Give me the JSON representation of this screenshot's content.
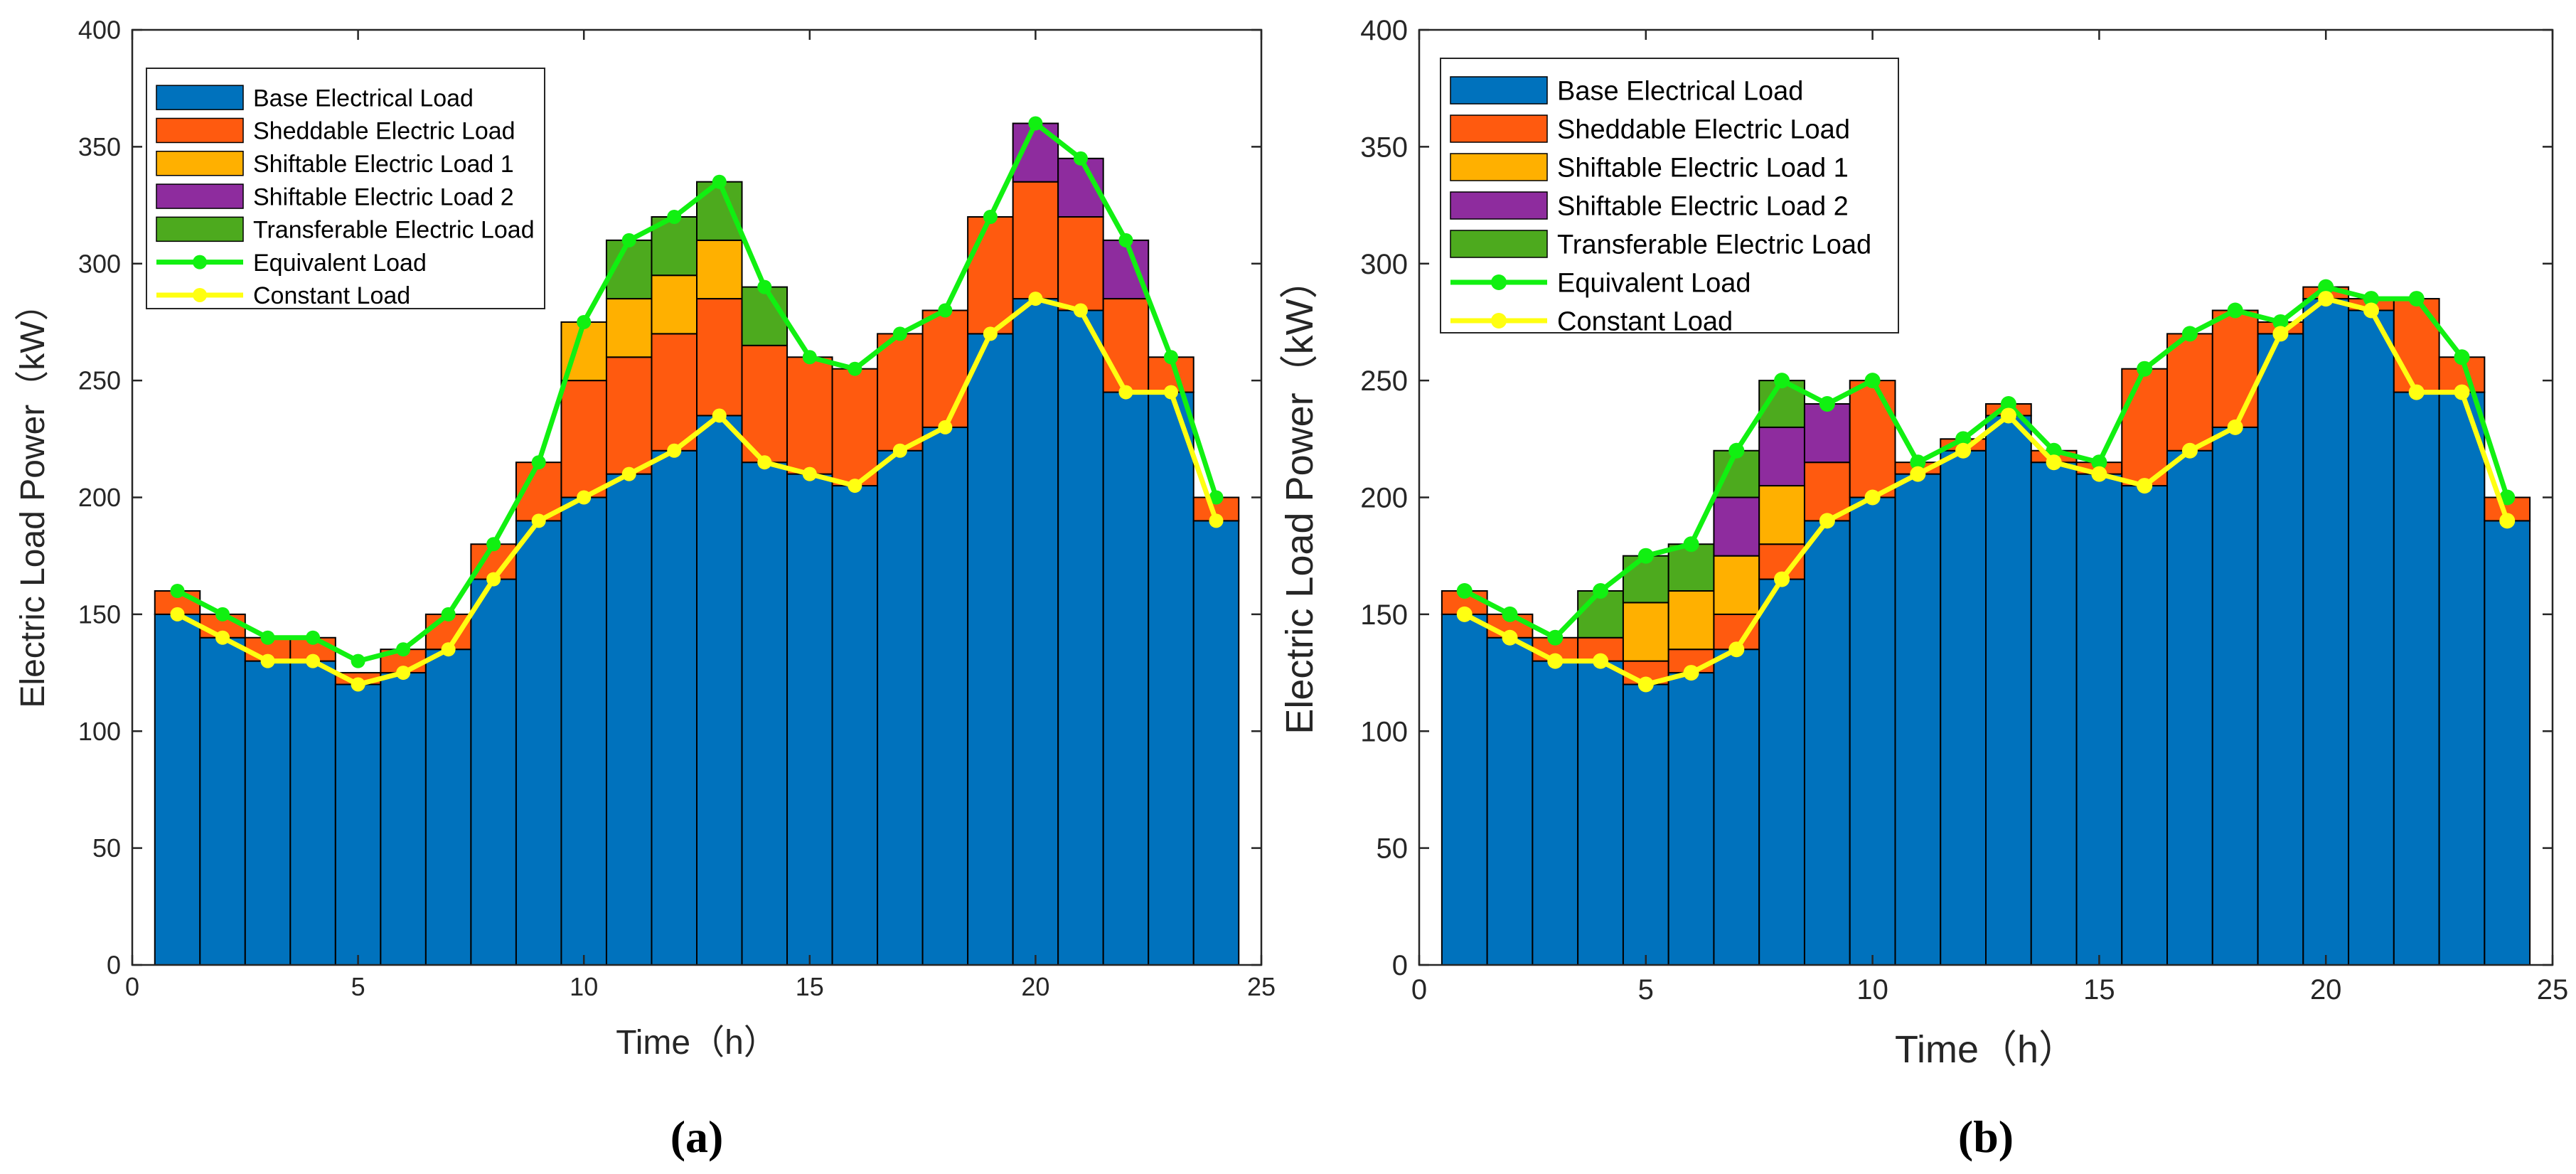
{
  "figure": {
    "panels": [
      "(a)",
      "(b)"
    ]
  },
  "colors": {
    "base": "#0072BD",
    "sheddable": "#FF5A0F",
    "shiftable1": "#FFB000",
    "shiftable2": "#8E2C9E",
    "transferable": "#4DAA1E",
    "equivalent": "#11F011",
    "constant": "#FFFF11",
    "axis": "#262626"
  },
  "chart_data": [
    {
      "type": "bar",
      "panel_label": "(a)",
      "stacked": true,
      "xlabel": "Time（h）",
      "ylabel": "Electric Load Power（kW）",
      "xlim": [
        0,
        25
      ],
      "ylim": [
        0,
        400
      ],
      "xticks": [
        0,
        5,
        10,
        15,
        20,
        25
      ],
      "yticks": [
        0,
        50,
        100,
        150,
        200,
        250,
        300,
        350,
        400
      ],
      "legend_position": "top-left",
      "x": [
        1,
        2,
        3,
        4,
        5,
        6,
        7,
        8,
        9,
        10,
        11,
        12,
        13,
        14,
        15,
        16,
        17,
        18,
        19,
        20,
        21,
        22,
        23,
        24
      ],
      "series": [
        {
          "name": "Base Electrical Load",
          "color_key": "base",
          "values": [
            150,
            140,
            130,
            130,
            120,
            125,
            135,
            165,
            190,
            200,
            210,
            220,
            235,
            215,
            210,
            205,
            220,
            230,
            270,
            285,
            280,
            245,
            245,
            190
          ]
        },
        {
          "name": "Sheddable Electric Load",
          "color_key": "sheddable",
          "values": [
            10,
            10,
            10,
            10,
            5,
            10,
            15,
            15,
            25,
            50,
            50,
            50,
            50,
            50,
            50,
            50,
            50,
            50,
            50,
            50,
            40,
            40,
            15,
            10
          ]
        },
        {
          "name": "Shiftable Electric Load 1",
          "color_key": "shiftable1",
          "values": [
            0,
            0,
            0,
            0,
            0,
            0,
            0,
            0,
            0,
            25,
            25,
            25,
            25,
            0,
            0,
            0,
            0,
            0,
            0,
            0,
            0,
            0,
            0,
            0
          ]
        },
        {
          "name": "Shiftable Electric Load 2",
          "color_key": "shiftable2",
          "values": [
            0,
            0,
            0,
            0,
            0,
            0,
            0,
            0,
            0,
            0,
            0,
            0,
            0,
            0,
            0,
            0,
            0,
            0,
            0,
            25,
            25,
            25,
            0,
            0
          ]
        },
        {
          "name": "Transferable Electric Load",
          "color_key": "transferable",
          "values": [
            0,
            0,
            0,
            0,
            0,
            0,
            0,
            0,
            0,
            0,
            25,
            25,
            25,
            25,
            0,
            0,
            0,
            0,
            0,
            0,
            0,
            0,
            0,
            0
          ]
        }
      ],
      "lines": [
        {
          "name": "Equivalent Load",
          "color_key": "equivalent",
          "values": [
            160,
            150,
            140,
            140,
            130,
            135,
            150,
            180,
            215,
            275,
            310,
            320,
            335,
            290,
            260,
            255,
            270,
            280,
            320,
            360,
            345,
            310,
            260,
            200
          ]
        },
        {
          "name": "Constant Load",
          "color_key": "constant",
          "values": [
            150,
            140,
            130,
            130,
            120,
            125,
            135,
            165,
            190,
            200,
            210,
            220,
            235,
            215,
            210,
            205,
            220,
            230,
            270,
            285,
            280,
            245,
            245,
            190
          ]
        }
      ]
    },
    {
      "type": "bar",
      "panel_label": "(b)",
      "stacked": true,
      "xlabel": "Time（h）",
      "ylabel": "Electric Load Power（kW）",
      "xlim": [
        0,
        25
      ],
      "ylim": [
        0,
        400
      ],
      "xticks": [
        0,
        5,
        10,
        15,
        20,
        25
      ],
      "yticks": [
        0,
        50,
        100,
        150,
        200,
        250,
        300,
        350,
        400
      ],
      "legend_position": "top-left",
      "x": [
        1,
        2,
        3,
        4,
        5,
        6,
        7,
        8,
        9,
        10,
        11,
        12,
        13,
        14,
        15,
        16,
        17,
        18,
        19,
        20,
        21,
        22,
        23,
        24
      ],
      "series": [
        {
          "name": "Base Electrical Load",
          "color_key": "base",
          "values": [
            150,
            140,
            130,
            130,
            120,
            125,
            135,
            165,
            190,
            200,
            210,
            220,
            235,
            215,
            210,
            205,
            220,
            230,
            270,
            285,
            280,
            245,
            245,
            190
          ]
        },
        {
          "name": "Sheddable Electric Load",
          "color_key": "sheddable",
          "values": [
            10,
            10,
            10,
            10,
            10,
            10,
            15,
            15,
            25,
            50,
            5,
            5,
            5,
            5,
            5,
            50,
            50,
            50,
            5,
            5,
            5,
            40,
            15,
            10
          ]
        },
        {
          "name": "Shiftable Electric Load 1",
          "color_key": "shiftable1",
          "values": [
            0,
            0,
            0,
            0,
            25,
            25,
            25,
            25,
            0,
            0,
            0,
            0,
            0,
            0,
            0,
            0,
            0,
            0,
            0,
            0,
            0,
            0,
            0,
            0
          ]
        },
        {
          "name": "Shiftable Electric Load 2",
          "color_key": "shiftable2",
          "values": [
            0,
            0,
            0,
            0,
            0,
            0,
            25,
            25,
            25,
            0,
            0,
            0,
            0,
            0,
            0,
            0,
            0,
            0,
            0,
            0,
            0,
            0,
            0,
            0
          ]
        },
        {
          "name": "Transferable Electric Load",
          "color_key": "transferable",
          "values": [
            0,
            0,
            0,
            20,
            20,
            20,
            20,
            20,
            0,
            0,
            0,
            0,
            0,
            0,
            0,
            0,
            0,
            0,
            0,
            0,
            0,
            0,
            0,
            0
          ]
        }
      ],
      "lines": [
        {
          "name": "Equivalent Load",
          "color_key": "equivalent",
          "values": [
            160,
            150,
            140,
            160,
            175,
            180,
            220,
            250,
            240,
            250,
            215,
            225,
            240,
            220,
            215,
            255,
            270,
            280,
            275,
            290,
            285,
            285,
            260,
            200
          ]
        },
        {
          "name": "Constant Load",
          "color_key": "constant",
          "values": [
            150,
            140,
            130,
            130,
            120,
            125,
            135,
            165,
            190,
            200,
            210,
            220,
            235,
            215,
            210,
            205,
            220,
            230,
            270,
            285,
            280,
            245,
            245,
            190
          ]
        }
      ]
    }
  ]
}
